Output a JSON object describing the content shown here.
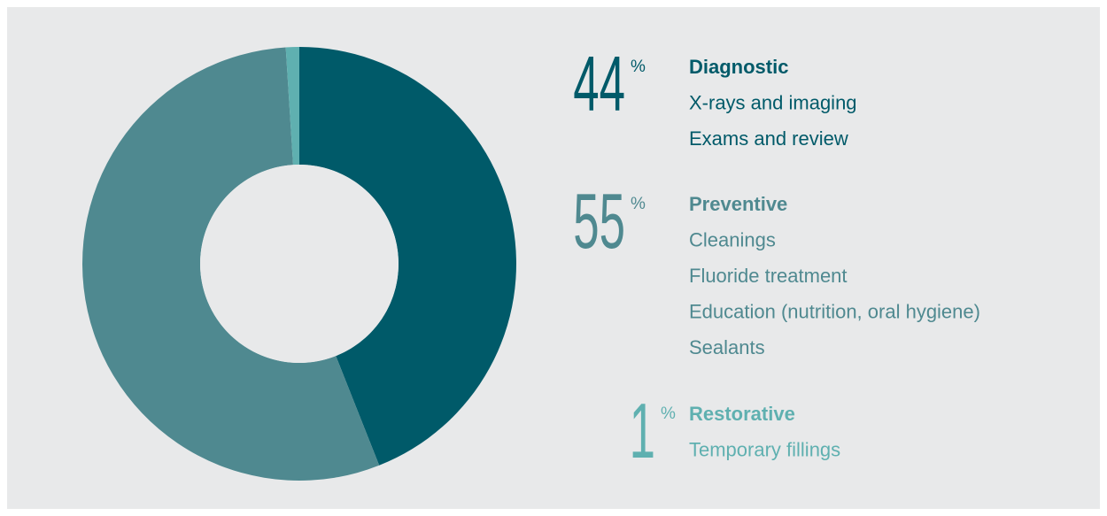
{
  "chart_data": {
    "type": "pie",
    "categories": [
      "Diagnostic",
      "Preventive",
      "Restorative"
    ],
    "values": [
      44,
      55,
      1
    ],
    "unit": "%",
    "colors": [
      "#005a69",
      "#4f8990",
      "#5fb0b0"
    ],
    "items": [
      [
        "X-rays and imaging",
        "Exams and review"
      ],
      [
        "Cleanings",
        "Fluoride treatment",
        "Education (nutrition, oral hygiene)",
        "Sealants"
      ],
      [
        "Temporary fillings"
      ]
    ]
  }
}
